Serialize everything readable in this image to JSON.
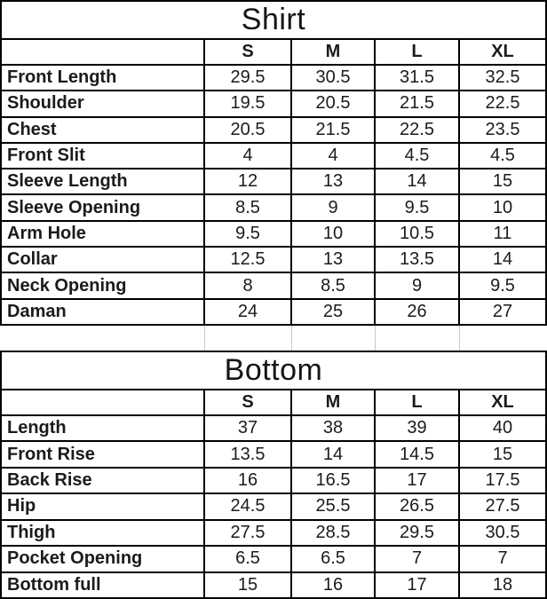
{
  "page": {
    "background": "#ffffff",
    "border_color": "#000000",
    "gridline_color": "#c9c9c9",
    "text_color": "#1b1b1b"
  },
  "shirt": {
    "title": "Shirt",
    "columns": [
      "S",
      "M",
      "L",
      "XL"
    ],
    "rows": [
      {
        "label": "Front Length",
        "values": [
          "29.5",
          "30.5",
          "31.5",
          "32.5"
        ]
      },
      {
        "label": "Shoulder",
        "values": [
          "19.5",
          "20.5",
          "21.5",
          "22.5"
        ]
      },
      {
        "label": "Chest",
        "values": [
          "20.5",
          "21.5",
          "22.5",
          "23.5"
        ]
      },
      {
        "label": "Front Slit",
        "values": [
          "4",
          "4",
          "4.5",
          "4.5"
        ]
      },
      {
        "label": "Sleeve Length",
        "values": [
          "12",
          "13",
          "14",
          "15"
        ]
      },
      {
        "label": "Sleeve Opening",
        "values": [
          "8.5",
          "9",
          "9.5",
          "10"
        ]
      },
      {
        "label": "Arm Hole",
        "values": [
          "9.5",
          "10",
          "10.5",
          "11"
        ]
      },
      {
        "label": "Collar",
        "values": [
          "12.5",
          "13",
          "13.5",
          "14"
        ]
      },
      {
        "label": "Neck Opening",
        "values": [
          "8",
          "8.5",
          "9",
          "9.5"
        ]
      },
      {
        "label": "Daman",
        "values": [
          "24",
          "25",
          "26",
          "27"
        ]
      }
    ]
  },
  "bottom": {
    "title": "Bottom",
    "columns": [
      "S",
      "M",
      "L",
      "XL"
    ],
    "rows": [
      {
        "label": "Length",
        "values": [
          "37",
          "38",
          "39",
          "40"
        ]
      },
      {
        "label": "Front Rise",
        "values": [
          "13.5",
          "14",
          "14.5",
          "15"
        ]
      },
      {
        "label": "Back Rise",
        "values": [
          "16",
          "16.5",
          "17",
          "17.5"
        ]
      },
      {
        "label": "Hip",
        "values": [
          "24.5",
          "25.5",
          "26.5",
          "27.5"
        ]
      },
      {
        "label": "Thigh",
        "values": [
          "27.5",
          "28.5",
          "29.5",
          "30.5"
        ]
      },
      {
        "label": "Pocket Opening",
        "values": [
          "6.5",
          "6.5",
          "7",
          "7"
        ]
      },
      {
        "label": "Bottom full",
        "values": [
          "15",
          "16",
          "17",
          "18"
        ]
      }
    ]
  }
}
